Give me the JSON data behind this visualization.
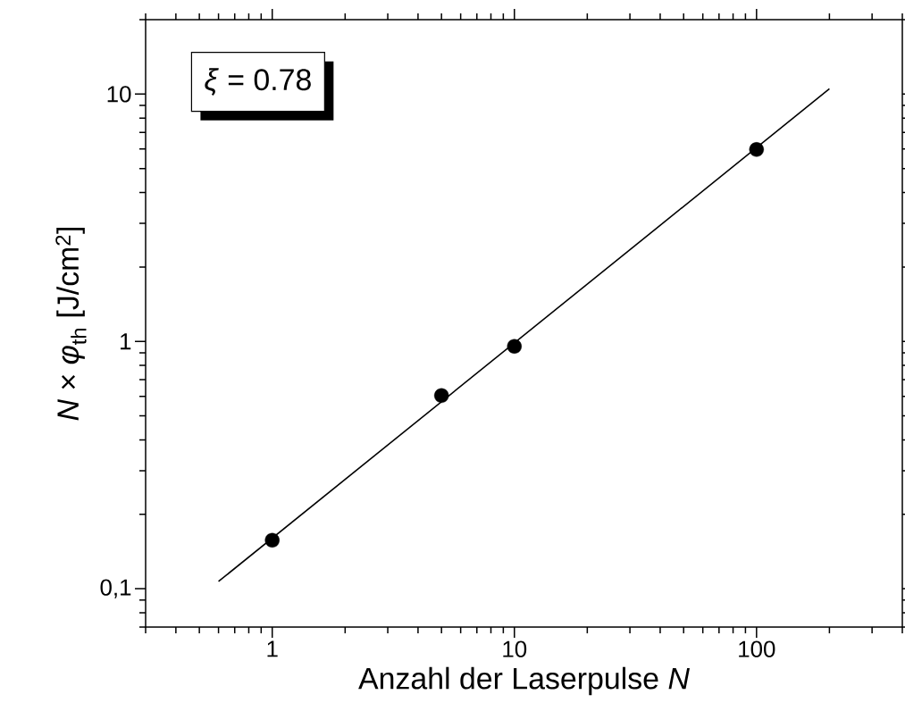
{
  "chart_data": {
    "type": "scatter",
    "xlabel": "Anzahl der Laserpulse  *N*",
    "ylabel": "*N* × *φ*$_{th}$   [J/cm$^{2}$]",
    "annotations": [
      "*ξ*  =  0.78"
    ],
    "log": "xy",
    "xlim": [
      0.3,
      400
    ],
    "ylim": [
      0.07,
      20
    ],
    "xticks": [
      1,
      10,
      100
    ],
    "yticks": [
      {
        "value": 0.1,
        "label": "0,1"
      },
      1,
      10
    ],
    "marker": "circle",
    "series": [
      {
        "color": "#000000",
        "x": [
          1,
          5,
          10,
          100
        ],
        "values": [
          0.157,
          0.604,
          0.955,
          5.97
        ]
      },
      {
        "type": "line",
        "color": "#000000",
        "marker": "none",
        "line_style": "solid",
        "x": [
          0.6,
          200
        ],
        "values": [
          0.107,
          10.5
        ]
      }
    ]
  }
}
